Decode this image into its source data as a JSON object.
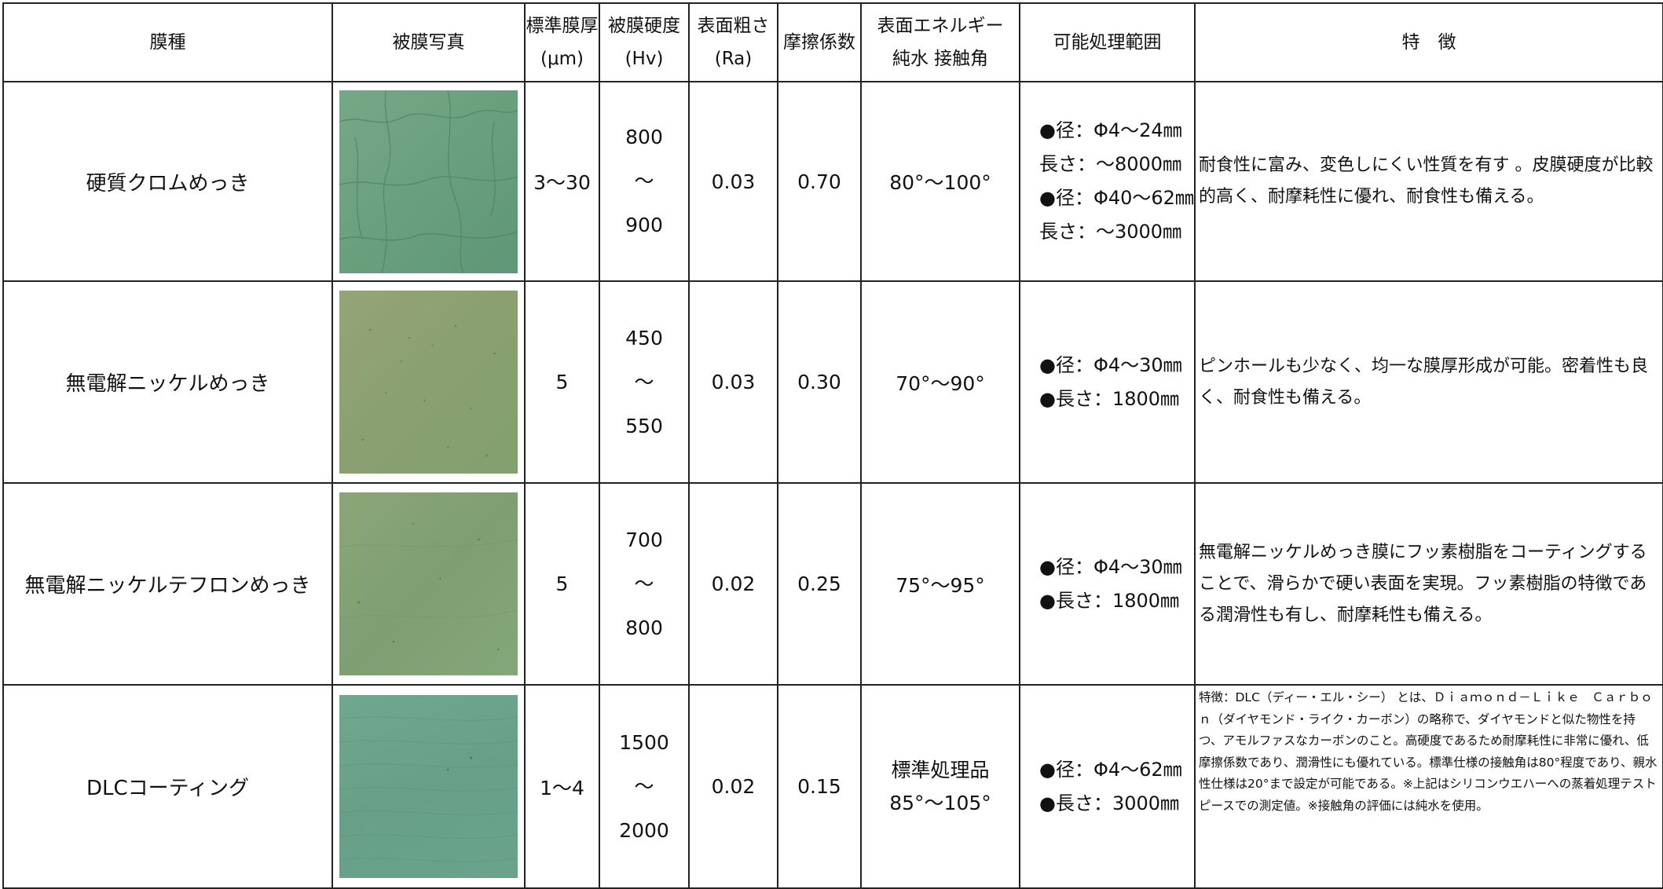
{
  "headers": {
    "film_type": "膜種",
    "photo": "被膜写真",
    "thickness": [
      "標準膜厚",
      "(μm)"
    ],
    "hardness": [
      "被膜硬度",
      "(Hv)"
    ],
    "roughness": [
      "表面粗さ",
      "(Ra)"
    ],
    "friction": "摩擦係数",
    "surface_energy": [
      "表面エネルギー",
      "純水 接触角"
    ],
    "range": "可能処理範囲",
    "features": "特　徴"
  },
  "rows": [
    {
      "name": "硬質クロムめっき",
      "thickness": "3～30",
      "hardness": [
        "800",
        "～",
        "900"
      ],
      "roughness": "0.03",
      "friction": "0.70",
      "contact_angle": [
        "80°～100°"
      ],
      "range": [
        "●径：Φ4～24㎜",
        "長さ：～8000㎜",
        "●径：Φ40～62㎜",
        "長さ：～3000㎜"
      ],
      "features": "耐食性に富み、変色しにくい性質を有す 。皮膜硬度が比較的高く、耐摩耗性に優れ、耐食性も備える。"
    },
    {
      "name": "無電解ニッケルめっき",
      "thickness": "5",
      "hardness": [
        "450",
        "～",
        "550"
      ],
      "roughness": "0.03",
      "friction": "0.30",
      "contact_angle": [
        "70°～90°"
      ],
      "range": [
        "●径：Φ4～30㎜",
        "●長さ：1800㎜"
      ],
      "features": "ピンホールも少なく、均一な膜厚形成が可能。密着性も良く、耐食性も備える。"
    },
    {
      "name": "無電解ニッケルテフロンめっき",
      "thickness": "5",
      "hardness": [
        "700",
        "～",
        "800"
      ],
      "roughness": "0.02",
      "friction": "0.25",
      "contact_angle": [
        "75°～95°"
      ],
      "range": [
        "●径：Φ4～30㎜",
        "●長さ：1800㎜"
      ],
      "features": "無電解ニッケルめっき膜にフッ素樹脂をコーティングすることで、滑らかで硬い表面を実現。フッ素樹脂の特徴である潤滑性も有し、耐摩耗性も備える。"
    },
    {
      "name": "DLCコーティング",
      "thickness": "1～4",
      "hardness": [
        "1500",
        "～",
        "2000"
      ],
      "roughness": "0.02",
      "friction": "0.15",
      "contact_angle": [
        "標準処理品",
        "85°～105°"
      ],
      "range": [
        "●径：Φ4～62㎜",
        "●長さ：3000㎜"
      ],
      "features": "特徴：DLC（ディー・エル・シー） とは、Ｄｉａｍｏｎｄ－Ｌｉｋｅ　Ｃａｒｂｏｎ（ダイヤモンド・ライク・カーボン）の略称で、ダイヤモンドと似た物性を持つ、アモルファスなカーボンのこと。高硬度であるため耐摩耗性に非常に優れ、低摩擦係数であり、潤滑性にも優れている。標準仕様の接触角は80°程度であり、親水性仕様は20°まで設定が可能である。※上記はシリコンウエハーへの蒸着処理テストピースでの測定値。※接触角の評価には純水を使用。"
    }
  ]
}
